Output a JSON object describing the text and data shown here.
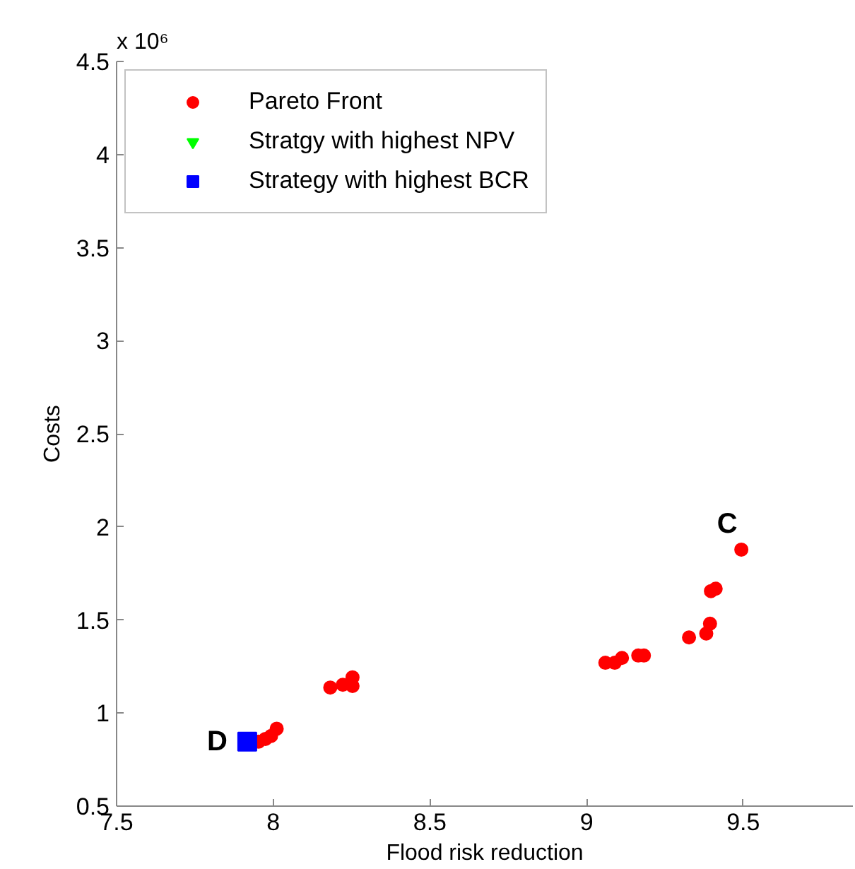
{
  "chart_data": {
    "type": "scatter",
    "xlabel": "Flood risk reduction",
    "ylabel": "Costs",
    "xlim": [
      7.5,
      9.85
    ],
    "ylim": [
      0.5,
      4.5
    ],
    "xticks": [
      7.5,
      8,
      8.5,
      9,
      9.5
    ],
    "yticks": [
      0.5,
      1,
      1.5,
      2,
      2.5,
      3,
      3.5,
      4,
      4.5
    ],
    "grid": false,
    "legend": "top left",
    "series": [
      {
        "name": "Pareto Front",
        "color": "#ff0000",
        "marker": "circle",
        "x": [
          7.953,
          7.975,
          7.993,
          8.011,
          8.182,
          8.222,
          8.253,
          8.253,
          9.06,
          9.09,
          9.113,
          9.165,
          9.183,
          9.327,
          9.382,
          9.394,
          9.397,
          9.412,
          9.494
        ],
        "values": [
          0.846,
          0.861,
          0.877,
          0.916,
          1.137,
          1.152,
          1.192,
          1.145,
          1.27,
          1.27,
          1.296,
          1.309,
          1.309,
          1.406,
          1.427,
          1.48,
          1.655,
          1.668,
          1.878
        ]
      },
      {
        "name": "Stratgy with highest NPV",
        "color": "#00ff00",
        "marker": "triangle"
      },
      {
        "name": "Strategy with highest BCR",
        "color": "#0000ff",
        "marker": "square",
        "x": [
          7.917
        ],
        "values": [
          0.846
        ]
      }
    ],
    "annotations": [
      {
        "text": "C",
        "x": 9.494,
        "y": 1.878
      },
      {
        "text": "D",
        "x": 7.917,
        "y": 0.846
      },
      "x 10⁶"
    ]
  }
}
